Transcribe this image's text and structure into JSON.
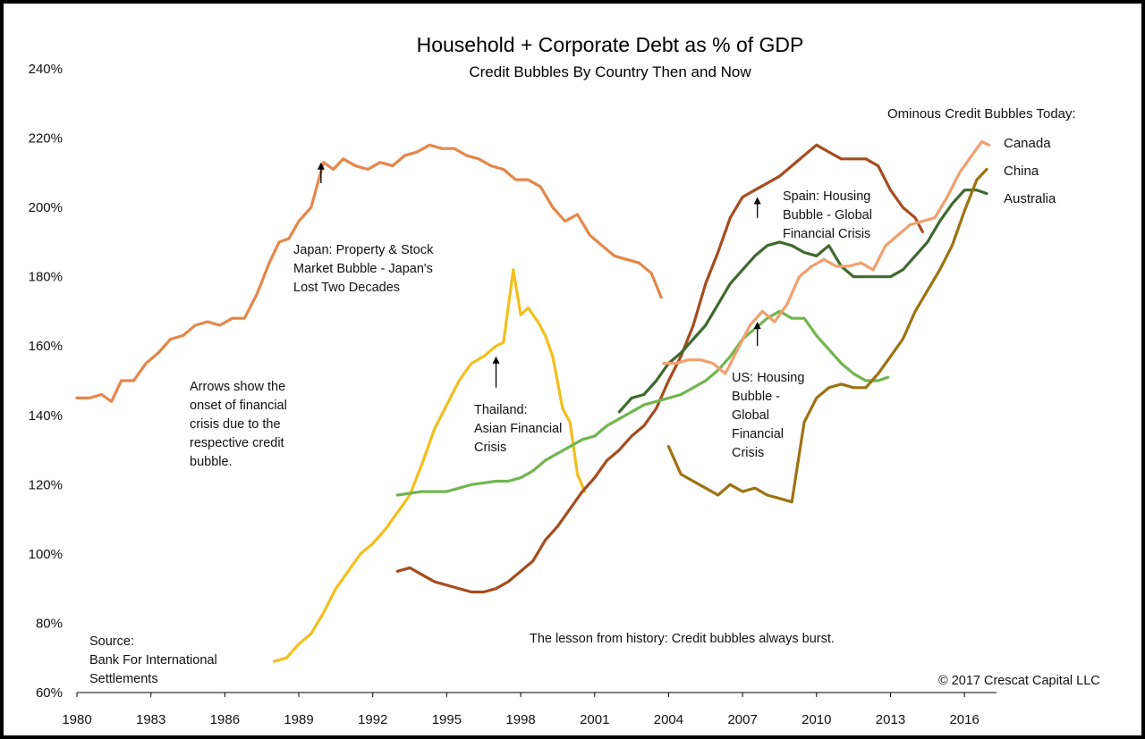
{
  "chart_data": {
    "type": "line",
    "title": "Household + Corporate Debt as % of GDP",
    "subtitle": "Credit Bubbles By Country Then and Now",
    "xlim": [
      1980,
      2017.3
    ],
    "ylim": [
      60,
      240
    ],
    "x_ticks": [
      "1980",
      "1983",
      "1986",
      "1989",
      "1992",
      "1995",
      "1998",
      "2001",
      "2004",
      "2007",
      "2010",
      "2013",
      "2016"
    ],
    "y_ticks": [
      "60%",
      "80%",
      "100%",
      "120%",
      "140%",
      "160%",
      "180%",
      "200%",
      "220%",
      "240%"
    ],
    "grid": false,
    "legend_title": "Ominous Credit Bubbles Today:",
    "series": [
      {
        "name": "Japan",
        "color": "#e4874a",
        "x": [
          1980,
          1980.5,
          1981,
          1981.4,
          1981.8,
          1982.3,
          1982.8,
          1983.3,
          1983.8,
          1984.3,
          1984.8,
          1985.3,
          1985.8,
          1986.3,
          1986.8,
          1987.3,
          1987.8,
          1988.2,
          1988.6,
          1989,
          1989.5,
          1990,
          1990.4,
          1990.8,
          1991.3,
          1991.8,
          1992.3,
          1992.8,
          1993.3,
          1993.8,
          1994.3,
          1994.8,
          1995.3,
          1995.8,
          1996.3,
          1996.8,
          1997.3,
          1997.8,
          1998.3,
          1998.8,
          1999.3,
          1999.8,
          2000.3,
          2000.8,
          2001.3,
          2001.8,
          2002.3,
          2002.8,
          2003.3,
          2003.7
        ],
        "y": [
          145,
          145,
          146,
          144,
          150,
          150,
          155,
          158,
          162,
          163,
          166,
          167,
          166,
          168,
          168,
          175,
          184,
          190,
          191,
          196,
          200,
          213,
          211,
          214,
          212,
          211,
          213,
          212,
          215,
          216,
          218,
          217,
          217,
          215,
          214,
          212,
          211,
          208,
          208,
          206,
          200,
          196,
          198,
          192,
          189,
          186,
          185,
          184,
          181,
          174
        ]
      },
      {
        "name": "Thailand",
        "color": "#f3bf1d",
        "x": [
          1988,
          1988.5,
          1989,
          1989.5,
          1990,
          1990.5,
          1991,
          1991.5,
          1992,
          1992.5,
          1993,
          1993.5,
          1994,
          1994.5,
          1995,
          1995.5,
          1996,
          1996.5,
          1997,
          1997.3,
          1997.7,
          1998,
          1998.3,
          1998.7,
          1999,
          1999.3,
          1999.7,
          2000,
          2000.3,
          2000.6
        ],
        "y": [
          69,
          70,
          74,
          77,
          83,
          90,
          95,
          100,
          103,
          107,
          112,
          117,
          126,
          136,
          143,
          150,
          155,
          157,
          160,
          161,
          182,
          169,
          171,
          167,
          163,
          157,
          142,
          138,
          123,
          118
        ]
      },
      {
        "name": "Spain",
        "color": "#a54c1f",
        "x": [
          1993,
          1993.5,
          1994,
          1994.5,
          1995,
          1995.5,
          1996,
          1996.5,
          1997,
          1997.5,
          1998,
          1998.5,
          1999,
          1999.5,
          2000,
          2000.5,
          2001,
          2001.5,
          2002,
          2002.5,
          2003,
          2003.5,
          2004,
          2004.5,
          2005,
          2005.5,
          2006,
          2006.5,
          2007,
          2007.5,
          2008,
          2008.5,
          2009,
          2009.5,
          2010,
          2010.5,
          2011,
          2011.5,
          2012,
          2012.5,
          2013,
          2013.5,
          2014,
          2014.3
        ],
        "y": [
          95,
          96,
          94,
          92,
          91,
          90,
          89,
          89,
          90,
          92,
          95,
          98,
          104,
          108,
          113,
          118,
          122,
          127,
          130,
          134,
          137,
          142,
          150,
          157,
          166,
          178,
          187,
          197,
          203,
          205,
          207,
          209,
          212,
          215,
          218,
          216,
          214,
          214,
          214,
          212,
          205,
          200,
          197,
          193
        ]
      },
      {
        "name": "US",
        "color": "#71b54f",
        "x": [
          1993,
          1994,
          1995,
          1996,
          1997,
          1997.5,
          1998,
          1998.5,
          1999,
          1999.5,
          2000,
          2000.5,
          2001,
          2001.5,
          2002,
          2002.5,
          2003,
          2003.5,
          2004,
          2004.5,
          2005,
          2005.5,
          2006,
          2006.5,
          2007,
          2007.5,
          2008,
          2008.5,
          2009,
          2009.5,
          2010,
          2010.5,
          2011,
          2011.5,
          2012,
          2012.5,
          2012.9
        ],
        "y": [
          117,
          118,
          118,
          120,
          121,
          121,
          122,
          124,
          127,
          129,
          131,
          133,
          134,
          137,
          139,
          141,
          143,
          144,
          145,
          146,
          148,
          150,
          153,
          157,
          162,
          165,
          168,
          170,
          168,
          168,
          163,
          159,
          155,
          152,
          150,
          150,
          151
        ]
      },
      {
        "name": "Australia",
        "color": "#3e6a2f",
        "x": [
          2002,
          2002.5,
          2003,
          2003.5,
          2004,
          2004.5,
          2005,
          2005.5,
          2006,
          2006.5,
          2007,
          2007.5,
          2008,
          2008.5,
          2009,
          2009.5,
          2010,
          2010.5,
          2011,
          2011.5,
          2012,
          2012.5,
          2013,
          2013.5,
          2014,
          2014.5,
          2015,
          2015.5,
          2016,
          2016.5,
          2016.9
        ],
        "y": [
          141,
          145,
          146,
          150,
          155,
          158,
          162,
          166,
          172,
          178,
          182,
          186,
          189,
          190,
          189,
          187,
          186,
          189,
          183,
          180,
          180,
          180,
          180,
          182,
          186,
          190,
          196,
          201,
          205,
          205,
          204
        ]
      },
      {
        "name": "Canada",
        "color": "#f0a06f",
        "x": [
          2003.8,
          2004.3,
          2004.8,
          2005.3,
          2005.8,
          2006.3,
          2006.8,
          2007.3,
          2007.8,
          2008.3,
          2008.8,
          2009.3,
          2009.8,
          2010.3,
          2010.8,
          2011.3,
          2011.8,
          2012.3,
          2012.8,
          2013.3,
          2013.8,
          2014.3,
          2014.8,
          2015.3,
          2015.8,
          2016.3,
          2016.7,
          2017
        ],
        "y": [
          155,
          155,
          156,
          156,
          155,
          152,
          159,
          166,
          170,
          167,
          172,
          180,
          183,
          185,
          183,
          183,
          184,
          182,
          189,
          192,
          195,
          196,
          197,
          203,
          210,
          215,
          219,
          218
        ]
      },
      {
        "name": "China",
        "color": "#9c7310",
        "x": [
          2004,
          2004.5,
          2005,
          2005.5,
          2006,
          2006.5,
          2007,
          2007.5,
          2008,
          2008.5,
          2009,
          2009.5,
          2010,
          2010.5,
          2011,
          2011.5,
          2012,
          2012.5,
          2013,
          2013.5,
          2014,
          2014.5,
          2015,
          2015.5,
          2016,
          2016.5,
          2016.9
        ],
        "y": [
          131,
          123,
          121,
          119,
          117,
          120,
          118,
          119,
          117,
          116,
          115,
          138,
          145,
          148,
          149,
          148,
          148,
          152,
          157,
          162,
          170,
          176,
          182,
          189,
          199,
          208,
          211
        ]
      }
    ],
    "arrows": [
      {
        "x": 1989.9,
        "y_tail": 207,
        "y_head": 213
      },
      {
        "x": 1997.0,
        "y_tail": 148,
        "y_head": 157
      },
      {
        "x": 2007.6,
        "y_tail": 197,
        "y_head": 203
      },
      {
        "x": 2007.6,
        "y_tail": 160,
        "y_head": 167
      }
    ]
  },
  "annotations": {
    "japan": [
      "Japan: Property & Stock",
      "Market Bubble - Japan's",
      "Lost Two Decades"
    ],
    "thailand": [
      "Thailand:",
      "Asian Financial",
      "Crisis"
    ],
    "spain": [
      "Spain: Housing",
      "Bubble - Global",
      "Financial Crisis"
    ],
    "us": [
      "US: Housing",
      "Bubble -",
      "Global",
      "Financial",
      "Crisis"
    ],
    "arrows_note": [
      "Arrows show the",
      "onset of financial",
      "crisis due to the",
      "respective credit",
      "bubble."
    ],
    "source": [
      "Source:",
      "Bank For International",
      "Settlements"
    ],
    "lesson": "The lesson from history: Credit bubbles always burst.",
    "copyright": "© 2017 Crescat Capital LLC"
  },
  "legend_labels": {
    "canada": "Canada",
    "china": "China",
    "australia": "Australia"
  }
}
